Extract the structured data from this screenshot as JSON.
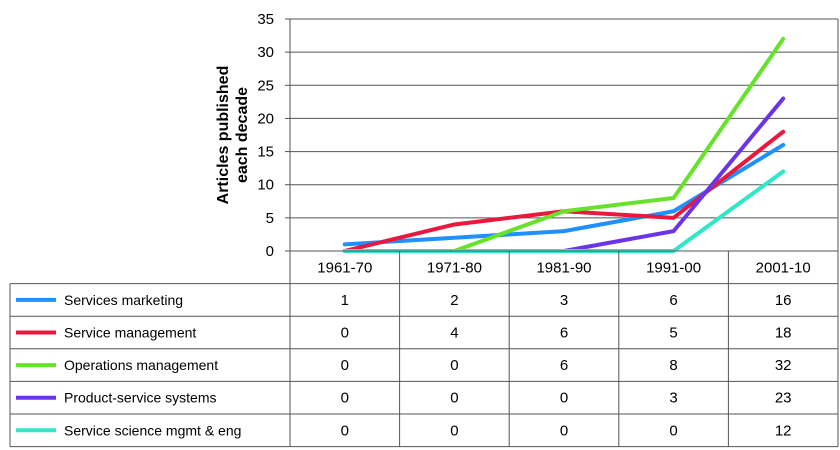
{
  "chart_data": {
    "type": "line",
    "ylabel_lines": [
      "Articles published",
      "each decade"
    ],
    "yticks": [
      0,
      5,
      10,
      15,
      20,
      25,
      30,
      35
    ],
    "ylim": [
      0,
      35
    ],
    "categories": [
      "1961-70",
      "1971-80",
      "1981-90",
      "1991-00",
      "2001-10"
    ],
    "grid": true,
    "legend": "data table below chart",
    "series": [
      {
        "name": "Services marketing",
        "color": "#1e90ff",
        "values": [
          1,
          2,
          3,
          6,
          16
        ]
      },
      {
        "name": "Service management",
        "color": "#e8193c",
        "values": [
          0,
          4,
          6,
          5,
          18
        ]
      },
      {
        "name": "Operations management",
        "color": "#66e22a",
        "values": [
          0,
          0,
          6,
          8,
          32
        ]
      },
      {
        "name": "Product-service systems",
        "color": "#6a35e8",
        "values": [
          0,
          0,
          0,
          3,
          23
        ]
      },
      {
        "name": "Service science mgmt & eng",
        "color": "#2ee8c8",
        "values": [
          0,
          0,
          0,
          0,
          12
        ]
      }
    ]
  }
}
